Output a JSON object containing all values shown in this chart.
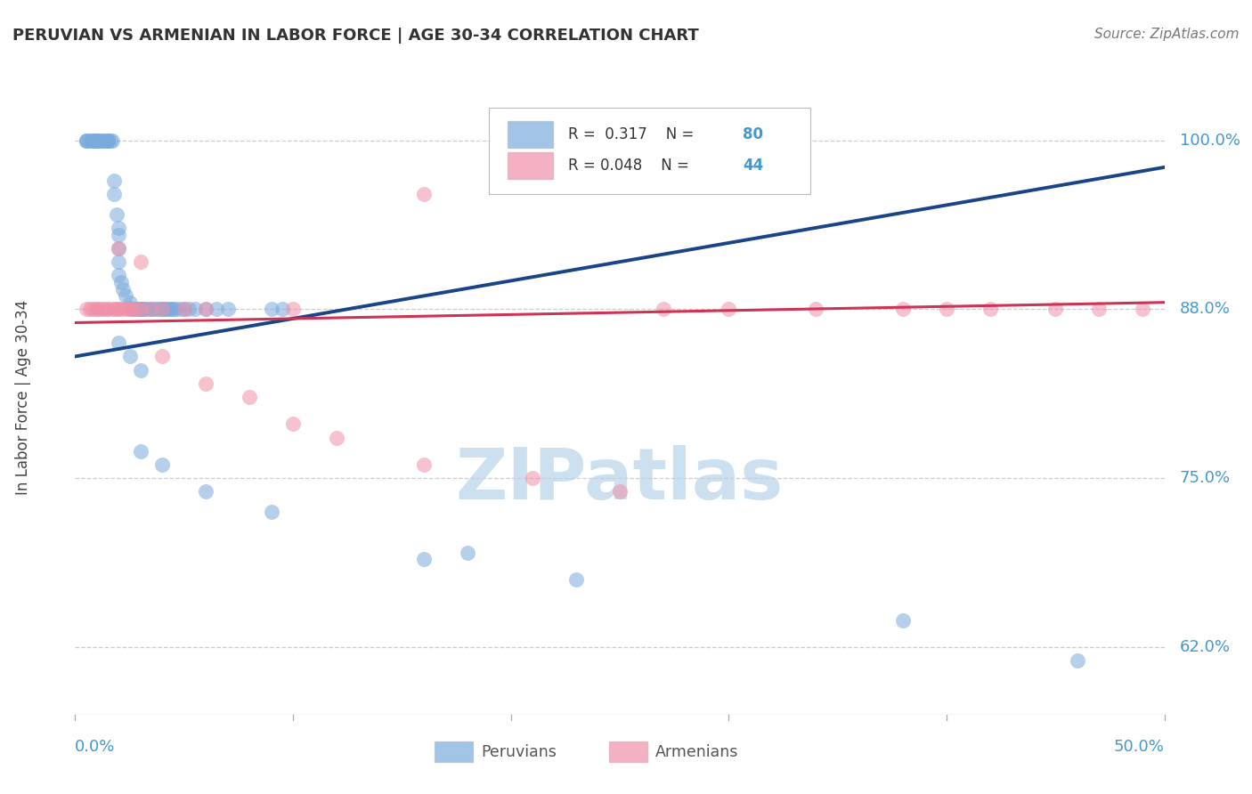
{
  "title": "PERUVIAN VS ARMENIAN IN LABOR FORCE | AGE 30-34 CORRELATION CHART",
  "source": "Source: ZipAtlas.com",
  "ylabel": "In Labor Force | Age 30-34",
  "xlim": [
    0.0,
    0.5
  ],
  "ylim": [
    0.575,
    1.045
  ],
  "ytick_values": [
    0.625,
    0.75,
    0.875,
    1.0
  ],
  "blue_color": "#7aabdd",
  "pink_color": "#f090a8",
  "trend_blue_solid_color": "#1a4488",
  "trend_blue_dash_color": "#7aabdd",
  "trend_pink_color": "#cc3355",
  "axis_label_color": "#4499cc",
  "title_color": "#333333",
  "source_color": "#777777",
  "grid_color": "#cccccc",
  "watermark_color": "#cce0f0",
  "blue_x": [
    0.005,
    0.005,
    0.005,
    0.007,
    0.008,
    0.008,
    0.009,
    0.009,
    0.01,
    0.01,
    0.01,
    0.01,
    0.01,
    0.01,
    0.01,
    0.012,
    0.012,
    0.013,
    0.014,
    0.015,
    0.015,
    0.015,
    0.016,
    0.017,
    0.018,
    0.018,
    0.019,
    0.02,
    0.02,
    0.02,
    0.02,
    0.02,
    0.021,
    0.022,
    0.023,
    0.025,
    0.025,
    0.026,
    0.027,
    0.028,
    0.03,
    0.03,
    0.03,
    0.03,
    0.031,
    0.032,
    0.033,
    0.035,
    0.035,
    0.037,
    0.038,
    0.04,
    0.04,
    0.04,
    0.041,
    0.042,
    0.043,
    0.044,
    0.045,
    0.046,
    0.048,
    0.05,
    0.052,
    0.055,
    0.06,
    0.065,
    0.07,
    0.09,
    0.095,
    0.02,
    0.025,
    0.03,
    0.18,
    0.38,
    0.46,
    0.03,
    0.04,
    0.06,
    0.09,
    0.16,
    0.23
  ],
  "blue_y": [
    1.0,
    1.0,
    1.0,
    1.0,
    1.0,
    1.0,
    1.0,
    1.0,
    1.0,
    1.0,
    1.0,
    1.0,
    1.0,
    1.0,
    1.0,
    1.0,
    1.0,
    1.0,
    1.0,
    1.0,
    1.0,
    1.0,
    1.0,
    1.0,
    0.97,
    0.96,
    0.945,
    0.935,
    0.93,
    0.92,
    0.91,
    0.9,
    0.895,
    0.89,
    0.885,
    0.88,
    0.876,
    0.875,
    0.875,
    0.875,
    0.875,
    0.875,
    0.875,
    0.875,
    0.875,
    0.875,
    0.875,
    0.875,
    0.875,
    0.875,
    0.875,
    0.875,
    0.875,
    0.875,
    0.875,
    0.875,
    0.875,
    0.875,
    0.875,
    0.875,
    0.875,
    0.875,
    0.875,
    0.875,
    0.875,
    0.875,
    0.875,
    0.875,
    0.875,
    0.85,
    0.84,
    0.83,
    0.695,
    0.645,
    0.615,
    0.77,
    0.76,
    0.74,
    0.725,
    0.69,
    0.675
  ],
  "pink_x": [
    0.005,
    0.007,
    0.008,
    0.01,
    0.01,
    0.012,
    0.013,
    0.015,
    0.015,
    0.018,
    0.018,
    0.02,
    0.02,
    0.022,
    0.023,
    0.025,
    0.025,
    0.028,
    0.03,
    0.035,
    0.04,
    0.05,
    0.06,
    0.1,
    0.27,
    0.3,
    0.34,
    0.38,
    0.4,
    0.42,
    0.45,
    0.47,
    0.02,
    0.03,
    0.04,
    0.06,
    0.08,
    0.1,
    0.12,
    0.16,
    0.21,
    0.25,
    0.49,
    0.16
  ],
  "pink_y": [
    0.875,
    0.875,
    0.875,
    0.875,
    0.875,
    0.875,
    0.875,
    0.875,
    0.875,
    0.875,
    0.875,
    0.875,
    0.875,
    0.875,
    0.875,
    0.875,
    0.875,
    0.875,
    0.875,
    0.875,
    0.875,
    0.875,
    0.875,
    0.875,
    0.875,
    0.875,
    0.875,
    0.875,
    0.875,
    0.875,
    0.875,
    0.875,
    0.92,
    0.91,
    0.84,
    0.82,
    0.81,
    0.79,
    0.78,
    0.76,
    0.75,
    0.74,
    0.875,
    0.96
  ]
}
